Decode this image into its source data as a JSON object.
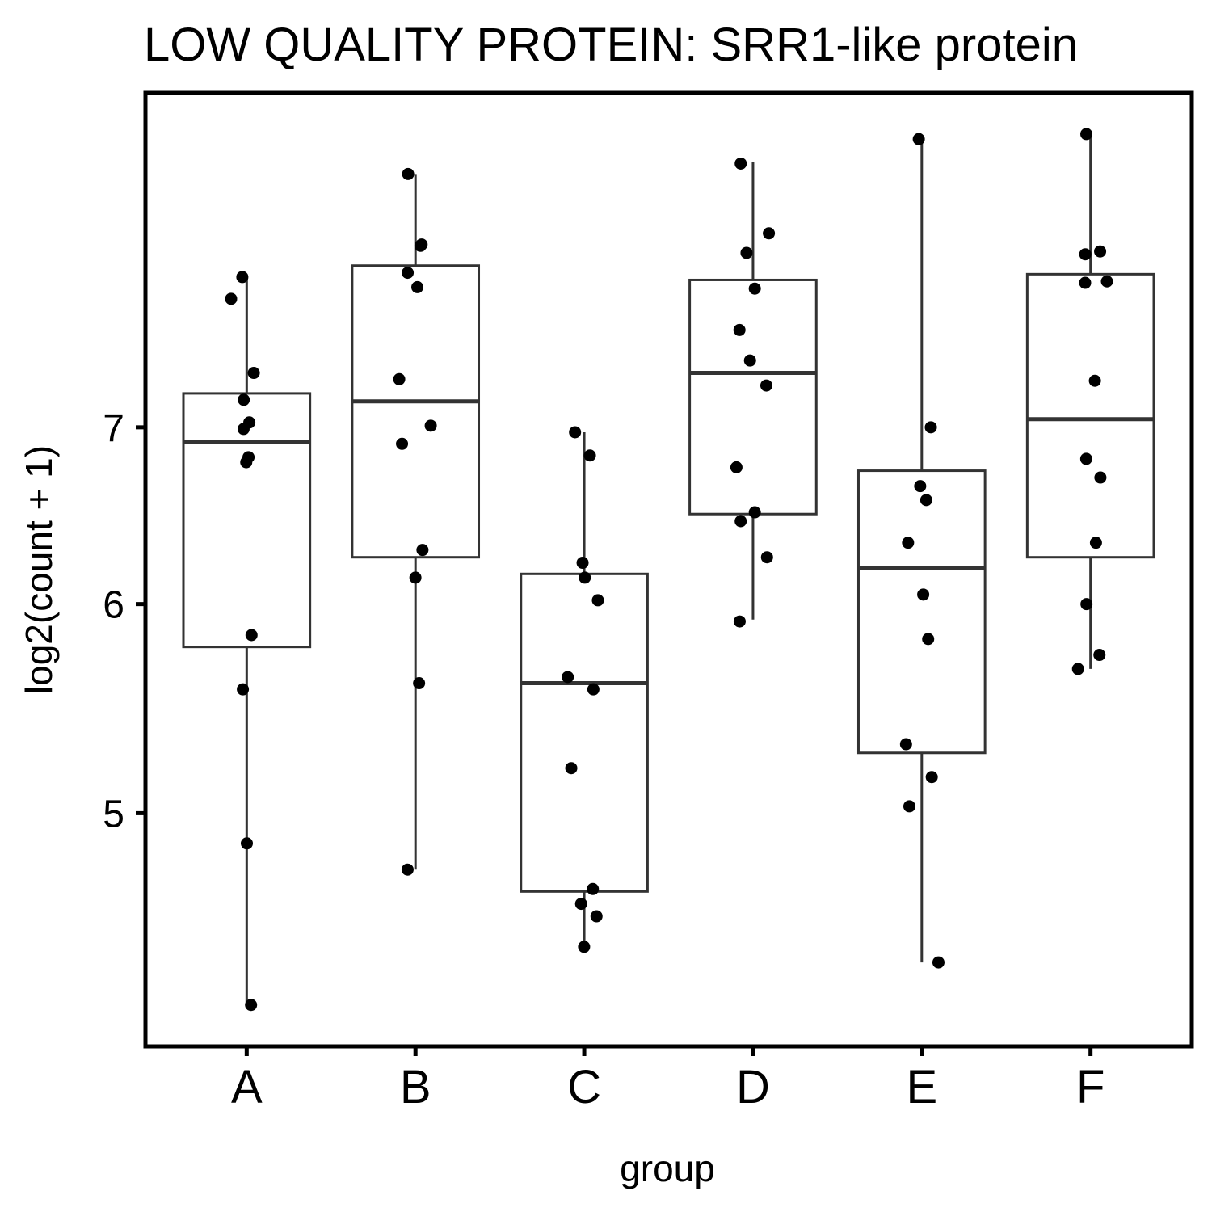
{
  "chart_data": {
    "type": "box",
    "title": "LOW QUALITY PROTEIN: SRR1-like protein",
    "x_label": "group",
    "y_label": "log2(count + 1)",
    "categories": [
      "A",
      "B",
      "C",
      "D",
      "E",
      "F"
    ],
    "boxes": [
      {
        "whisker_low": 4.23,
        "q1": 5.78,
        "median": 6.91,
        "q3": 7.21,
        "whisker_high": 7.99
      },
      {
        "whisker_low": 4.76,
        "q1": 6.25,
        "median": 7.16,
        "q3": 8.06,
        "whisker_high": 8.73
      },
      {
        "whisker_low": 4.45,
        "q1": 4.67,
        "median": 5.6,
        "q3": 6.16,
        "whisker_high": 6.97
      },
      {
        "whisker_low": 5.92,
        "q1": 6.49,
        "median": 7.34,
        "q3": 7.96,
        "whisker_high": 8.82
      },
      {
        "whisker_low": 4.39,
        "q1": 5.27,
        "median": 6.19,
        "q3": 6.74,
        "whisker_high": 9.0
      },
      {
        "whisker_low": 5.67,
        "q1": 6.25,
        "median": 7.05,
        "q3": 8.0,
        "whisker_high": 9.04
      }
    ],
    "points": [
      [
        7.98,
        7.83,
        7.34,
        7.17,
        7.03,
        6.99,
        6.82,
        6.79,
        5.84,
        5.57,
        4.87,
        4.23
      ],
      [
        8.73,
        8.21,
        8.2,
        8.01,
        7.91,
        7.3,
        7.01,
        6.9,
        6.29,
        6.14,
        5.6,
        4.76
      ],
      [
        6.97,
        6.83,
        6.22,
        6.14,
        6.02,
        5.63,
        5.57,
        5.2,
        4.68,
        4.62,
        4.57,
        4.45
      ],
      [
        8.81,
        8.29,
        8.15,
        7.9,
        7.62,
        7.42,
        7.26,
        6.76,
        6.5,
        6.45,
        6.25,
        5.91
      ],
      [
        9.0,
        7.0,
        6.65,
        6.57,
        6.33,
        6.05,
        5.82,
        5.31,
        5.16,
        5.03,
        4.39
      ],
      [
        9.04,
        8.16,
        8.14,
        7.95,
        7.94,
        7.29,
        6.81,
        6.7,
        6.33,
        6.0,
        5.74,
        5.67
      ]
    ],
    "box_color": "#333333",
    "point_color": "#000000",
    "ylim": [
      4.08,
      9.37
    ],
    "yticks": [
      5,
      6,
      7
    ],
    "y_scale": "log",
    "grid": false
  }
}
